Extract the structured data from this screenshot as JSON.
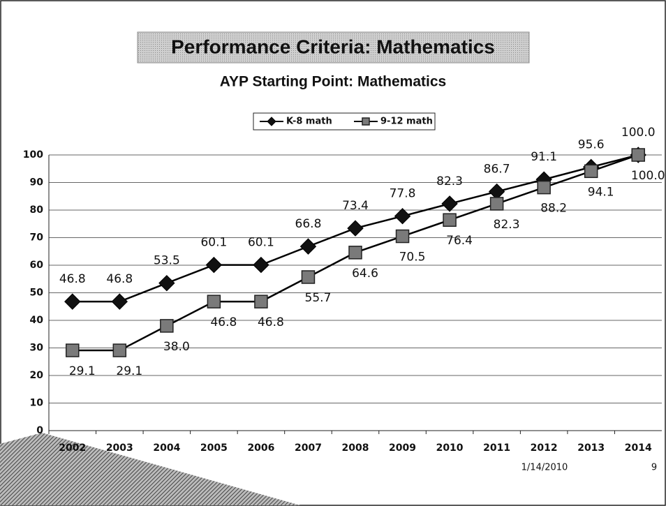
{
  "slide_title": "Performance Criteria: Mathematics",
  "chart_data": {
    "type": "line",
    "title": "AYP Starting Point:  Mathematics",
    "categories": [
      "2002",
      "2003",
      "2004",
      "2005",
      "2006",
      "2007",
      "2008",
      "2009",
      "2010",
      "2011",
      "2012",
      "2013",
      "2014"
    ],
    "series": [
      {
        "name": "K-8 math",
        "color": "#111111",
        "marker": "diamond",
        "values": [
          46.8,
          46.8,
          53.5,
          60.1,
          60.1,
          66.8,
          73.4,
          77.8,
          82.3,
          86.7,
          91.1,
          95.6,
          100.0
        ],
        "value_labels": [
          "46.8",
          "46.8",
          "53.5",
          "60.1",
          "60.1",
          "66.8",
          "73.4",
          "77.8",
          "82.3",
          "86.7",
          "91.1",
          "95.6",
          "100.0"
        ]
      },
      {
        "name": "9-12 math",
        "color": "#7a7a7a",
        "marker": "square",
        "values": [
          29.1,
          29.1,
          38.0,
          46.8,
          46.8,
          55.7,
          64.6,
          70.5,
          76.4,
          82.3,
          88.2,
          94.1,
          100.0
        ],
        "value_labels": [
          "29.1",
          "29.1",
          "38.0",
          "46.8",
          "46.8",
          "55.7",
          "64.6",
          "70.5",
          "76.4",
          "82.3",
          "88.2",
          "94.1",
          "100.0"
        ]
      }
    ],
    "ylim": [
      0,
      100
    ],
    "yticks": [
      0,
      10,
      20,
      30,
      40,
      50,
      60,
      70,
      80,
      90,
      100
    ],
    "grid": true,
    "legend": "top"
  },
  "footer": {
    "date": "1/14/2010",
    "page": "9"
  }
}
